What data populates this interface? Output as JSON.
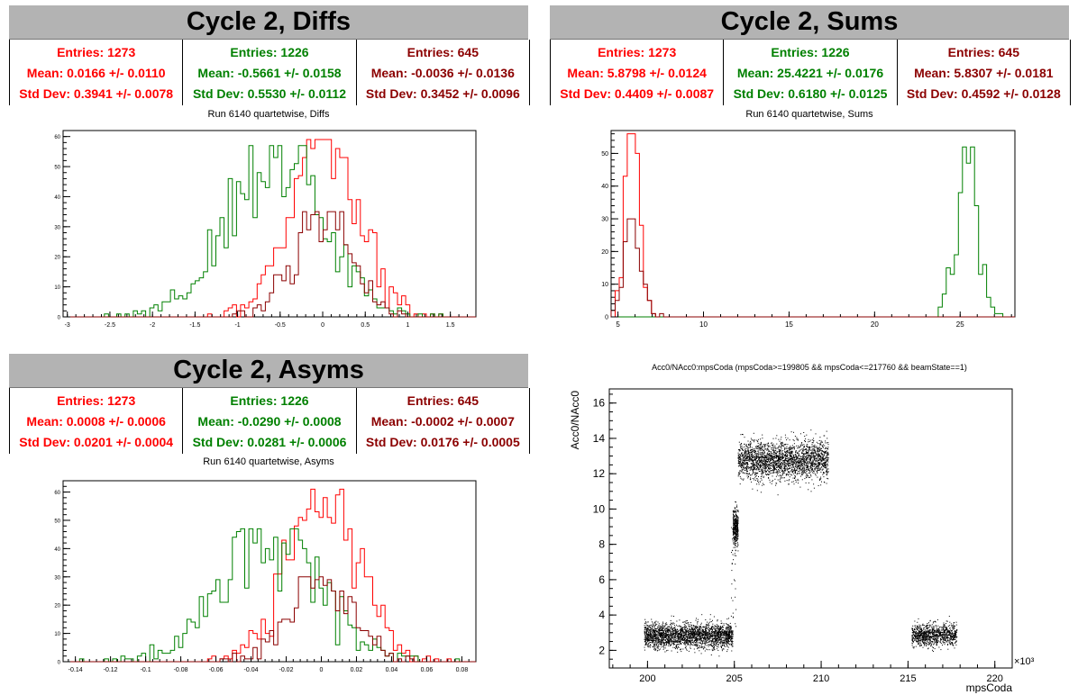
{
  "panels": {
    "diffs": {
      "header": "Cycle 2, Diffs",
      "subtitle": "Run 6140 quartetwise, Diffs",
      "stats": [
        {
          "entries": "Entries: 1273",
          "mean": "Mean: 0.0166 +/- 0.0110",
          "std": "Std Dev: 0.3941 +/- 0.0078",
          "color": "#ff0000"
        },
        {
          "entries": "Entries: 1226",
          "mean": "Mean: -0.5661 +/- 0.0158",
          "std": "Std Dev: 0.5530 +/- 0.0112",
          "color": "#008000"
        },
        {
          "entries": "Entries: 645",
          "mean": "Mean: -0.0036 +/- 0.0136",
          "std": "Std Dev: 0.3452 +/- 0.0096",
          "color": "#8b0000"
        }
      ]
    },
    "sums": {
      "header": "Cycle 2, Sums",
      "subtitle": "Run 6140 quartetwise, Sums",
      "stats": [
        {
          "entries": "Entries: 1273",
          "mean": "Mean: 5.8798 +/- 0.0124",
          "std": "Std Dev: 0.4409 +/- 0.0087",
          "color": "#ff0000"
        },
        {
          "entries": "Entries: 1226",
          "mean": "Mean: 25.4221 +/- 0.0176",
          "std": "Std Dev: 0.6180 +/- 0.0125",
          "color": "#008000"
        },
        {
          "entries": "Entries: 645",
          "mean": "Mean: 5.8307 +/- 0.0181",
          "std": "Std Dev: 0.4592 +/- 0.0128",
          "color": "#8b0000"
        }
      ]
    },
    "asyms": {
      "header": "Cycle 2, Asyms",
      "subtitle": "Run 6140 quartetwise, Asyms",
      "stats": [
        {
          "entries": "Entries: 1273",
          "mean": "Mean: 0.0008 +/- 0.0006",
          "std": "Std Dev: 0.0201 +/- 0.0004",
          "color": "#ff0000"
        },
        {
          "entries": "Entries: 1226",
          "mean": "Mean: -0.0290 +/- 0.0008",
          "std": "Std Dev: 0.0281 +/- 0.0006",
          "color": "#008000"
        },
        {
          "entries": "Entries: 645",
          "mean": "Mean: -0.0002 +/- 0.0007",
          "std": "Std Dev: 0.0176 +/- 0.0005",
          "color": "#8b0000"
        }
      ]
    },
    "scatter": {
      "title": "Acc0/NAcc0:mpsCoda (mpsCoda>=199805 && mpsCoda<=217760 && beamState==1)"
    }
  },
  "chart_data": [
    {
      "type": "histogram",
      "title": "Run 6140 quartetwise, Diffs",
      "xlim": [
        -3.05,
        1.8
      ],
      "ylim": [
        0,
        62
      ],
      "xticks": [
        -3,
        -2.5,
        -2,
        -1.5,
        -1,
        -0.5,
        0,
        0.5,
        1,
        1.5
      ],
      "xtick_labels": [
        "-3",
        "-2.5",
        "-2",
        "-1.5",
        "-1",
        "-0.5",
        "0",
        "0.5",
        "1",
        "1.5"
      ],
      "yticks": [
        0,
        10,
        20,
        30,
        40,
        50,
        60
      ],
      "series": [
        {
          "color": "#ff0000",
          "entries": 1273,
          "mean": 0.0166,
          "std": 0.3941,
          "peak": 59
        },
        {
          "color": "#008000",
          "entries": 1226,
          "mean": -0.5661,
          "std": 0.553,
          "peak": 57
        },
        {
          "color": "#8b0000",
          "entries": 645,
          "mean": -0.0036,
          "std": 0.3452,
          "peak": 35
        }
      ]
    },
    {
      "type": "histogram",
      "title": "Run 6140 quartetwise, Sums",
      "xlim": [
        4.6,
        28.2
      ],
      "ylim": [
        0,
        57
      ],
      "xticks": [
        5,
        10,
        15,
        20,
        25
      ],
      "xtick_labels": [
        "5",
        "10",
        "15",
        "20",
        "25"
      ],
      "yticks": [
        0,
        10,
        20,
        30,
        40,
        50
      ],
      "series": [
        {
          "color": "#ff0000",
          "entries": 1273,
          "mean": 5.8798,
          "std": 0.4409,
          "peak": 56
        },
        {
          "color": "#008000",
          "entries": 1226,
          "mean": 25.4221,
          "std": 0.618,
          "peak": 52
        },
        {
          "color": "#8b0000",
          "entries": 645,
          "mean": 5.8307,
          "std": 0.4592,
          "peak": 30
        }
      ]
    },
    {
      "type": "histogram",
      "title": "Run 6140 quartetwise, Asyms",
      "xlim": [
        -0.147,
        0.088
      ],
      "ylim": [
        0,
        64
      ],
      "xticks": [
        -0.14,
        -0.12,
        -0.1,
        -0.08,
        -0.06,
        -0.04,
        -0.02,
        0,
        0.02,
        0.04,
        0.06,
        0.08
      ],
      "xtick_labels": [
        "-0.14",
        "-0.12",
        "-0.1",
        "-0.08",
        "-0.06",
        "-0.04",
        "-0.02",
        "0",
        "0.02",
        "0.04",
        "0.06",
        "0.08"
      ],
      "yticks": [
        0,
        10,
        20,
        30,
        40,
        50,
        60
      ],
      "series": [
        {
          "color": "#ff0000",
          "entries": 1273,
          "mean": 0.0008,
          "std": 0.0201,
          "peak": 61
        },
        {
          "color": "#008000",
          "entries": 1226,
          "mean": -0.029,
          "std": 0.0281,
          "peak": 47
        },
        {
          "color": "#8b0000",
          "entries": 645,
          "mean": -0.0002,
          "std": 0.0176,
          "peak": 30
        }
      ]
    },
    {
      "type": "scatter",
      "title": "Acc0/NAcc0:mpsCoda (mpsCoda>=199805 && mpsCoda<=217760 && beamState==1)",
      "xlabel": "mpsCoda",
      "ylabel": "Acc0/NAcc0",
      "xlim": [
        197.8,
        221.0
      ],
      "ylim": [
        1.0,
        16.8
      ],
      "x_multiplier": "×10³",
      "xticks": [
        200,
        205,
        210,
        215,
        220
      ],
      "xtick_labels": [
        "200",
        "205",
        "210",
        "215",
        "220"
      ],
      "yticks": [
        2,
        4,
        6,
        8,
        10,
        12,
        14,
        16
      ],
      "ytick_labels": [
        "2",
        "4",
        "6",
        "8",
        "10",
        "12",
        "14",
        "16"
      ],
      "clusters": [
        {
          "x_range": [
            199.8,
            204.9
          ],
          "y_center": 2.85,
          "y_spread": 0.35
        },
        {
          "x_range": [
            204.9,
            205.2
          ],
          "y_center": 9.0,
          "y_spread": 0.5
        },
        {
          "x_range": [
            205.2,
            210.4
          ],
          "y_center": 12.8,
          "y_spread": 0.55
        },
        {
          "x_range": [
            215.2,
            217.8
          ],
          "y_center": 2.9,
          "y_spread": 0.3
        }
      ]
    }
  ]
}
